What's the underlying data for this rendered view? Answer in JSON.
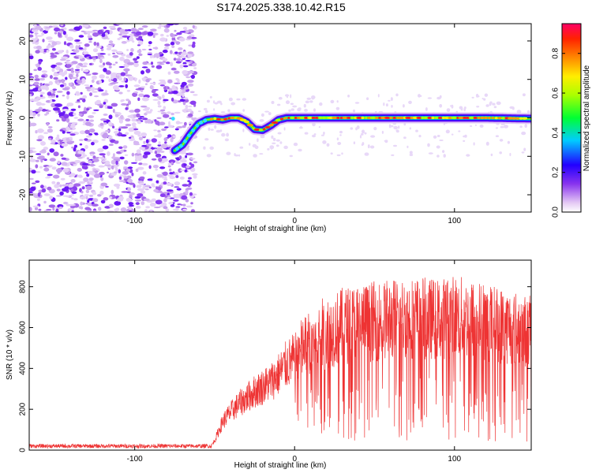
{
  "chart_data": [
    {
      "type": "heatmap",
      "title": "S174.2025.338.10.42.R15",
      "xlabel": "Height of straight line (km)",
      "ylabel": "Frequency (Hz)",
      "xlim": [
        -166,
        148
      ],
      "ylim": [
        -24.5,
        24.5
      ],
      "xticks": [
        -100,
        0,
        100
      ],
      "yticks": [
        -20,
        -10,
        0,
        10,
        20
      ],
      "colorbar": {
        "label": "Normalized spectral amplitude",
        "range": [
          0,
          0.95
        ],
        "ticks": [
          0.0,
          0.2,
          0.4,
          0.6,
          0.8
        ]
      },
      "ridge": {
        "x": [
          -75,
          -70,
          -65,
          -60,
          -55,
          -50,
          -45,
          -40,
          -35,
          -30,
          -25,
          -20,
          -15,
          -10,
          -5,
          0,
          10,
          20,
          40,
          60,
          80,
          100,
          120,
          148
        ],
        "y": [
          -8.5,
          -7,
          -4,
          -1.5,
          -0.5,
          -0.2,
          -0.5,
          0,
          0,
          -1.0,
          -3.0,
          -3.2,
          -2.0,
          -0.5,
          0,
          0,
          0,
          0,
          0,
          0,
          0,
          0,
          0,
          -0.2
        ],
        "peak_amplitude_x": [
          -50,
          -45,
          -40,
          -35,
          -20,
          0,
          10,
          20,
          40,
          60,
          80,
          100,
          120
        ]
      },
      "noise_region_x": [
        -166,
        -62
      ]
    },
    {
      "type": "line",
      "xlabel": "Height of straight line (km)",
      "ylabel": "SNR (10 * v/v)",
      "xlim": [
        -166,
        148
      ],
      "ylim": [
        0,
        930
      ],
      "xticks": [
        -100,
        0,
        100
      ],
      "yticks": [
        0,
        200,
        400,
        600,
        800
      ],
      "series": [
        {
          "name": "SNR",
          "color": "#ee3333",
          "envelope_x": [
            -166,
            -52,
            -50,
            -45,
            -40,
            -35,
            -30,
            -25,
            -20,
            -15,
            -10,
            -5,
            0,
            5,
            10,
            15,
            20,
            25,
            30,
            40,
            50,
            60,
            70,
            80,
            90,
            100,
            110,
            120,
            130,
            140,
            148
          ],
          "envelope_y": [
            30,
            30,
            60,
            180,
            240,
            290,
            330,
            370,
            400,
            430,
            480,
            540,
            580,
            620,
            660,
            700,
            720,
            740,
            760,
            780,
            790,
            800,
            810,
            810,
            800,
            820,
            800,
            780,
            760,
            740,
            720
          ]
        }
      ]
    }
  ]
}
